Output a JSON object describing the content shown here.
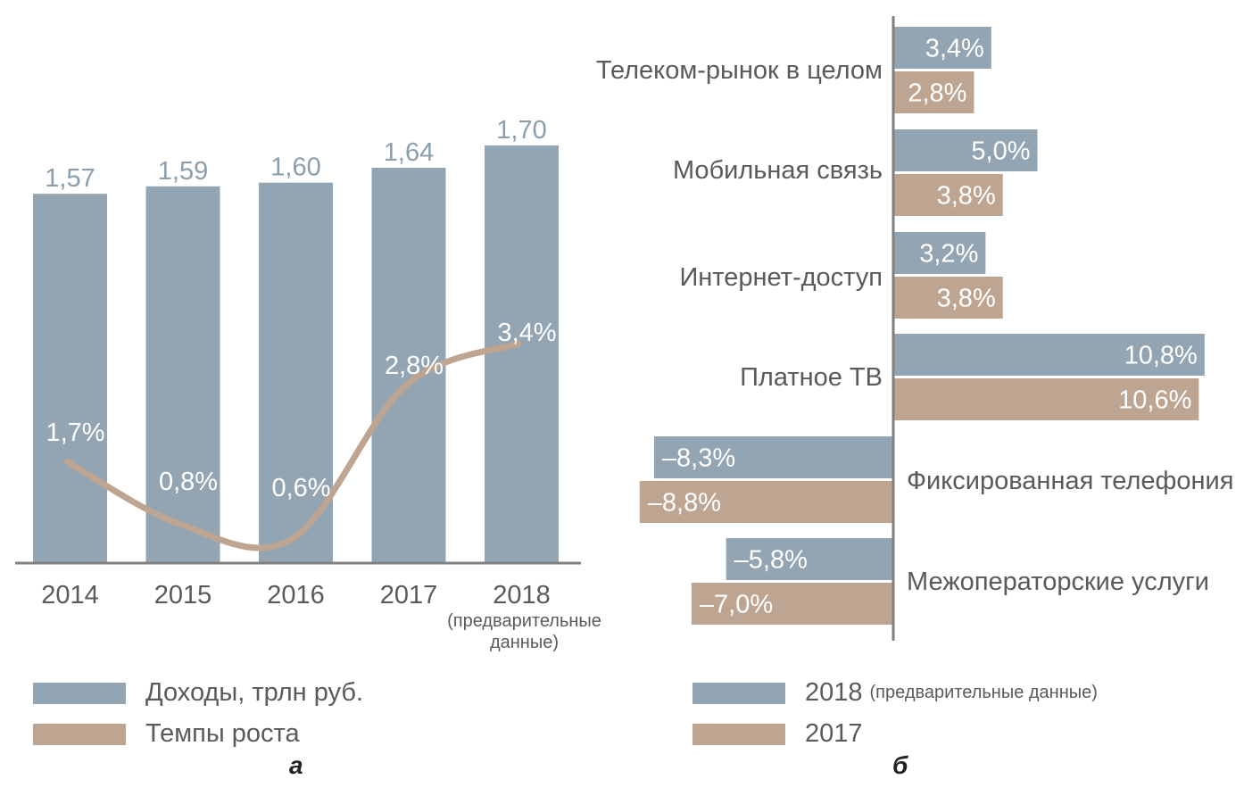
{
  "colors": {
    "series_2018": "#93a5b3",
    "series_2017": "#bea592",
    "text": "#5a5a5a",
    "bar_label_above": "#8a9eac",
    "axis": "#808080"
  },
  "panel_a": {
    "letter": "а"
  },
  "panel_b": {
    "letter": "б"
  },
  "legend_a": [
    {
      "label": "Доходы, трлн руб.",
      "color": "#93a5b3"
    },
    {
      "label": "Темпы роста",
      "color": "#bea592"
    }
  ],
  "legend_b": [
    {
      "label": "2018",
      "note": "(предварительные данные)",
      "color": "#93a5b3"
    },
    {
      "label": "2017",
      "note": "",
      "color": "#bea592"
    }
  ],
  "chart_data": [
    {
      "type": "bar",
      "categories": [
        "2014",
        "2015",
        "2016",
        "2017",
        "2018"
      ],
      "category_notes": [
        "",
        "",
        "",
        "",
        "(предварительные данные)"
      ],
      "series": [
        {
          "name": "Доходы, трлн руб.",
          "values": [
            1.57,
            1.59,
            1.6,
            1.64,
            1.7
          ],
          "labels": [
            "1,57",
            "1,59",
            "1,60",
            "1,64",
            "1,70"
          ]
        },
        {
          "name": "Темпы роста",
          "type": "line",
          "values": [
            1.7,
            0.8,
            0.6,
            2.8,
            3.4
          ],
          "labels": [
            "1,7%",
            "0,8%",
            "0,6%",
            "2,8%",
            "3,4%"
          ]
        }
      ],
      "grid": false
    },
    {
      "type": "bar",
      "orientation": "horizontal",
      "categories": [
        "Телеком-рынок в целом",
        "Мобильная связь",
        "Интернет-доступ",
        "Платное ТВ",
        "Фиксированная телефония",
        "Межоператорские услуги"
      ],
      "series": [
        {
          "name": "2018",
          "values": [
            3.4,
            5.0,
            3.2,
            10.8,
            -8.3,
            -5.8
          ],
          "labels": [
            "3,4%",
            "5,0%",
            "3,2%",
            "10,8%",
            "–8,3%",
            "–5,8%"
          ]
        },
        {
          "name": "2017",
          "values": [
            2.8,
            3.8,
            3.8,
            10.6,
            -8.8,
            -7.0
          ],
          "labels": [
            "2,8%",
            "3,8%",
            "3,8%",
            "10,6%",
            "–8,8%",
            "–7,0%"
          ]
        }
      ],
      "grid": false
    }
  ]
}
